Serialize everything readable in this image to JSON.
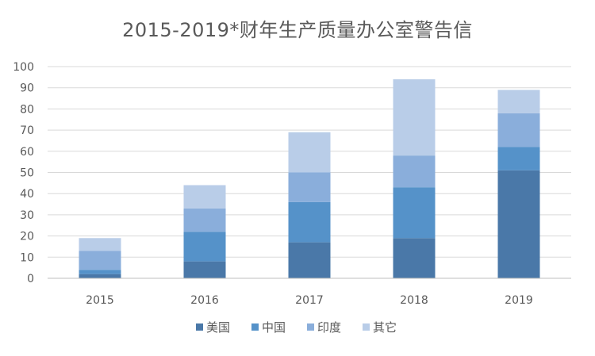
{
  "chart_data": {
    "type": "bar",
    "stacked": true,
    "title": "2015-2019*财年生产质量办公室警告信",
    "xlabel": "",
    "ylabel": "",
    "categories": [
      "2015",
      "2016",
      "2017",
      "2018",
      "2019"
    ],
    "ylim": [
      0,
      100
    ],
    "yticks": [
      0,
      10,
      20,
      30,
      40,
      50,
      60,
      70,
      80,
      90,
      100
    ],
    "grid": true,
    "legend_position": "bottom",
    "series": [
      {
        "name": "美国",
        "color": "#4a78a8",
        "values": [
          2,
          8,
          17,
          19,
          51
        ]
      },
      {
        "name": "中国",
        "color": "#5592c9",
        "values": [
          2,
          14,
          19,
          24,
          11
        ]
      },
      {
        "name": "印度",
        "color": "#8aaedb",
        "values": [
          9,
          11,
          14,
          15,
          16
        ]
      },
      {
        "name": "其它",
        "color": "#b9cde8",
        "values": [
          6,
          11,
          19,
          36,
          11
        ]
      }
    ]
  }
}
